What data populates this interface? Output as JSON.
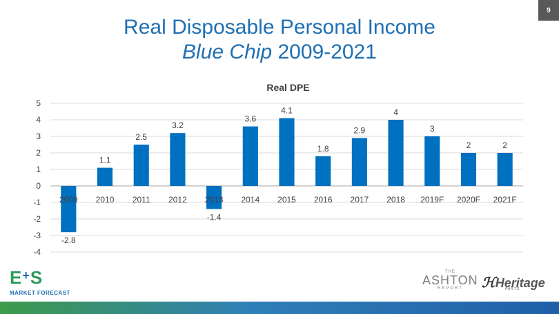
{
  "slide": {
    "title_line1": "Real Disposable Personal Income",
    "title_line2_italic": "Blue Chip",
    "title_line2_rest": " 2009-2021",
    "page_number": "9"
  },
  "logos": {
    "es_left": "E",
    "es_plus": "+",
    "es_right": "S",
    "es_subtitle": "MARKET FORECAST",
    "ashton_the": "THE",
    "ashton_name": "ASHTON",
    "ashton_sub": "REPORT",
    "heritage_name": "Heritage",
    "heritage_sub": "PARTS"
  },
  "colors": {
    "bar": "#0070c0",
    "title": "#1f6fb2"
  },
  "chart_data": {
    "type": "bar",
    "title": "Real DPE",
    "categories": [
      "2009",
      "2010",
      "2011",
      "2012",
      "2013",
      "2014",
      "2015",
      "2016",
      "2017",
      "2018",
      "2019F",
      "2020F",
      "2021F"
    ],
    "values": [
      -2.8,
      1.1,
      2.5,
      3.2,
      -1.4,
      3.6,
      4.1,
      1.8,
      2.9,
      4,
      3,
      2,
      2
    ],
    "ylim": [
      -4,
      5
    ],
    "yticks": [
      -4,
      -3,
      -2,
      -1,
      0,
      1,
      2,
      3,
      4,
      5
    ],
    "grid": true,
    "legend": "none"
  }
}
